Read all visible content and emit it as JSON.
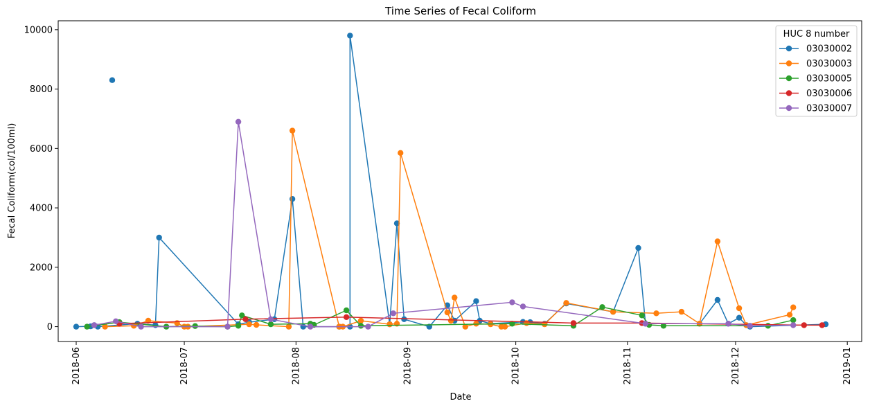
{
  "chart_data": {
    "type": "line",
    "title": "Time Series of Fecal Coliform",
    "xlabel": "Date",
    "ylabel": "Fecal Coliform(col/100ml)",
    "xlim": [
      "2018-05-27",
      "2019-01-05"
    ],
    "ylim": [
      -500,
      10300
    ],
    "x_ticks": [
      "2018-06-01",
      "2018-07-01",
      "2018-08-01",
      "2018-09-01",
      "2018-10-01",
      "2018-11-01",
      "2018-12-01",
      "2019-01-01"
    ],
    "x_tick_labels": [
      "2018-06",
      "2018-07",
      "2018-08",
      "2018-09",
      "2018-10",
      "2018-11",
      "2018-12",
      "2019-01"
    ],
    "y_ticks": [
      0,
      2000,
      4000,
      6000,
      8000,
      10000
    ],
    "y_tick_labels": [
      "0",
      "2000",
      "4000",
      "6000",
      "8000",
      "10000"
    ],
    "grid": false,
    "legend": {
      "title": "HUC 8 number",
      "placement": "top-right"
    },
    "series": [
      {
        "name": "03030002",
        "color": "#1f77b4",
        "points": [
          [
            "2018-06-01",
            0
          ],
          [
            "2018-06-05",
            10
          ],
          [
            "2018-06-06",
            50
          ],
          [
            "2018-06-07",
            0
          ],
          [
            "2018-06-18",
            100
          ],
          [
            "2018-06-24",
            3000
          ],
          [
            "2018-06-23",
            50
          ],
          [
            "2018-07-16",
            80
          ],
          [
            "2018-07-19",
            150
          ],
          [
            "2018-07-26",
            250
          ],
          [
            "2018-07-31",
            4300
          ],
          [
            "2018-08-03",
            0
          ],
          [
            "2018-08-13",
            0
          ],
          [
            "2018-08-16",
            0
          ],
          [
            "2018-08-16",
            9800
          ],
          [
            "2018-08-27",
            80
          ],
          [
            "2018-08-29",
            3480
          ],
          [
            "2018-08-31",
            250
          ],
          [
            "2018-09-07",
            0
          ],
          [
            "2018-09-12",
            720
          ],
          [
            "2018-09-14",
            200
          ],
          [
            "2018-09-20",
            860
          ],
          [
            "2018-09-21",
            200
          ],
          [
            "2018-09-24",
            100
          ],
          [
            "2018-10-03",
            160
          ],
          [
            "2018-10-05",
            150
          ],
          [
            "2018-10-09",
            100
          ],
          [
            "2018-10-15",
            780
          ],
          [
            "2018-10-28",
            500
          ],
          [
            "2018-11-04",
            2650
          ],
          [
            "2018-11-06",
            100
          ],
          [
            "2018-11-21",
            100
          ],
          [
            "2018-11-26",
            900
          ],
          [
            "2018-11-29",
            100
          ],
          [
            "2018-12-02",
            300
          ],
          [
            "2018-12-04",
            50
          ],
          [
            "2018-12-05",
            0
          ],
          [
            "2018-12-26",
            80
          ]
        ],
        "unconnected": [
          [
            "2018-06-11",
            8300
          ]
        ]
      },
      {
        "name": "03030003",
        "color": "#ff7f0e",
        "points": [
          [
            "2018-06-09",
            0
          ],
          [
            "2018-06-17",
            30
          ],
          [
            "2018-06-21",
            200
          ],
          [
            "2018-06-29",
            120
          ],
          [
            "2018-07-01",
            0
          ],
          [
            "2018-07-02",
            0
          ],
          [
            "2018-07-19",
            80
          ],
          [
            "2018-07-21",
            60
          ],
          [
            "2018-07-30",
            0
          ],
          [
            "2018-07-31",
            6600
          ],
          [
            "2018-08-13",
            0
          ],
          [
            "2018-08-14",
            0
          ],
          [
            "2018-08-19",
            200
          ],
          [
            "2018-08-27",
            80
          ],
          [
            "2018-08-29",
            100
          ],
          [
            "2018-08-30",
            5850
          ],
          [
            "2018-09-12",
            480
          ],
          [
            "2018-09-13",
            200
          ],
          [
            "2018-09-14",
            980
          ],
          [
            "2018-09-17",
            0
          ],
          [
            "2018-09-20",
            100
          ],
          [
            "2018-09-24",
            80
          ],
          [
            "2018-09-27",
            0
          ],
          [
            "2018-09-28",
            0
          ],
          [
            "2018-10-04",
            120
          ],
          [
            "2018-10-09",
            80
          ],
          [
            "2018-10-15",
            800
          ],
          [
            "2018-10-28",
            500
          ],
          [
            "2018-11-09",
            450
          ],
          [
            "2018-11-16",
            500
          ],
          [
            "2018-11-21",
            100
          ],
          [
            "2018-11-26",
            2870
          ],
          [
            "2018-12-02",
            620
          ],
          [
            "2018-12-04",
            50
          ],
          [
            "2018-12-16",
            400
          ],
          [
            "2018-12-17",
            650
          ]
        ],
        "unconnected": []
      },
      {
        "name": "03030005",
        "color": "#2ca02c",
        "points": [
          [
            "2018-06-04",
            0
          ],
          [
            "2018-06-13",
            150
          ],
          [
            "2018-06-26",
            0
          ],
          [
            "2018-07-04",
            20
          ],
          [
            "2018-07-13",
            0
          ],
          [
            "2018-07-16",
            30
          ],
          [
            "2018-07-17",
            380
          ],
          [
            "2018-07-25",
            80
          ],
          [
            "2018-08-05",
            100
          ],
          [
            "2018-08-06",
            60
          ],
          [
            "2018-08-15",
            550
          ],
          [
            "2018-08-19",
            30
          ],
          [
            "2018-09-30",
            100
          ],
          [
            "2018-10-17",
            30
          ],
          [
            "2018-10-25",
            660
          ],
          [
            "2018-11-05",
            380
          ],
          [
            "2018-11-07",
            60
          ],
          [
            "2018-11-11",
            30
          ],
          [
            "2018-12-10",
            30
          ],
          [
            "2018-12-17",
            220
          ]
        ],
        "unconnected": []
      },
      {
        "name": "03030006",
        "color": "#d62728",
        "points": [
          [
            "2018-06-13",
            100
          ],
          [
            "2018-07-18",
            250
          ],
          [
            "2018-08-15",
            320
          ],
          [
            "2018-10-17",
            120
          ],
          [
            "2018-11-05",
            120
          ],
          [
            "2018-12-20",
            50
          ],
          [
            "2018-12-25",
            50
          ]
        ],
        "unconnected": []
      },
      {
        "name": "03030007",
        "color": "#9467bd",
        "points": [
          [
            "2018-06-06",
            50
          ],
          [
            "2018-06-12",
            180
          ],
          [
            "2018-06-19",
            0
          ],
          [
            "2018-07-13",
            0
          ],
          [
            "2018-07-16",
            6900
          ],
          [
            "2018-07-25",
            250
          ],
          [
            "2018-08-05",
            0
          ],
          [
            "2018-08-21",
            0
          ],
          [
            "2018-08-28",
            450
          ],
          [
            "2018-09-30",
            820
          ],
          [
            "2018-10-03",
            680
          ],
          [
            "2018-11-06",
            100
          ],
          [
            "2018-11-29",
            100
          ],
          [
            "2018-12-05",
            30
          ],
          [
            "2018-12-17",
            50
          ]
        ],
        "unconnected": []
      }
    ]
  }
}
